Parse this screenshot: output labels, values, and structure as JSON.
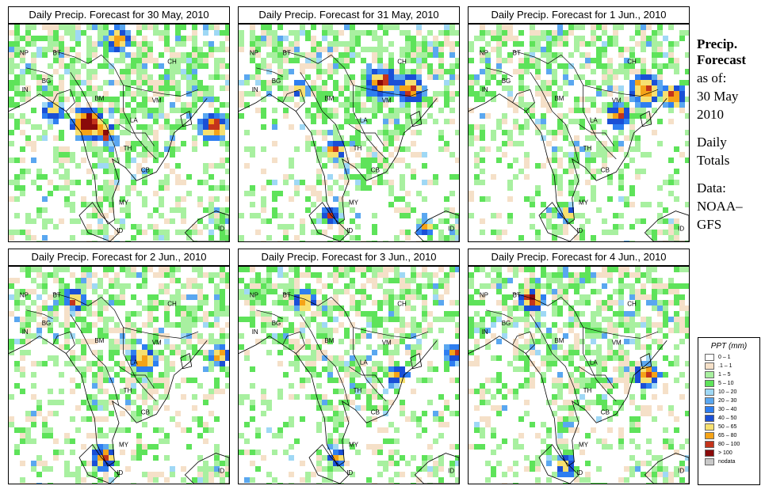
{
  "panels": [
    {
      "title": "Daily Precip. Forecast for 30 May, 2010",
      "seed": 11,
      "wet": 0.6,
      "hot": [
        [
          0.36,
          0.46,
          0.08,
          5
        ],
        [
          0.44,
          0.5,
          0.05,
          3
        ],
        [
          0.5,
          0.07,
          0.06,
          2
        ],
        [
          0.93,
          0.47,
          0.07,
          2
        ],
        [
          0.2,
          0.4,
          0.05,
          1
        ]
      ]
    },
    {
      "title": "Daily Precip. Forecast for 31 May, 2010",
      "seed": 23,
      "wet": 0.55,
      "hot": [
        [
          0.65,
          0.27,
          0.08,
          2
        ],
        [
          0.78,
          0.3,
          0.07,
          2
        ],
        [
          0.28,
          0.3,
          0.04,
          1
        ],
        [
          0.44,
          0.58,
          0.05,
          2
        ],
        [
          0.42,
          0.88,
          0.04,
          1
        ],
        [
          0.85,
          0.94,
          0.04,
          1
        ]
      ]
    },
    {
      "title": "Daily Precip. Forecast for  1 Jun., 2010",
      "seed": 37,
      "wet": 0.5,
      "hot": [
        [
          0.8,
          0.3,
          0.08,
          2
        ],
        [
          0.93,
          0.33,
          0.06,
          2
        ],
        [
          0.68,
          0.42,
          0.06,
          2
        ],
        [
          0.45,
          0.87,
          0.04,
          1
        ]
      ]
    },
    {
      "title": "Daily Precip. Forecast for  2 Jun., 2010",
      "seed": 41,
      "wet": 0.55,
      "hot": [
        [
          0.3,
          0.15,
          0.05,
          2
        ],
        [
          0.61,
          0.43,
          0.06,
          2
        ],
        [
          0.96,
          0.41,
          0.05,
          2
        ],
        [
          0.43,
          0.88,
          0.06,
          2
        ]
      ]
    },
    {
      "title": "Daily Precip. Forecast for  3 Jun., 2010",
      "seed": 53,
      "wet": 0.5,
      "hot": [
        [
          0.3,
          0.16,
          0.05,
          2
        ],
        [
          0.98,
          0.4,
          0.05,
          2
        ],
        [
          0.72,
          0.5,
          0.05,
          1
        ],
        [
          0.45,
          0.88,
          0.04,
          1
        ]
      ]
    },
    {
      "title": "Daily Precip. Forecast for  4 Jun., 2010",
      "seed": 67,
      "wet": 0.52,
      "hot": [
        [
          0.29,
          0.15,
          0.06,
          3
        ],
        [
          0.81,
          0.5,
          0.06,
          2
        ],
        [
          0.44,
          0.92,
          0.05,
          1
        ]
      ]
    }
  ],
  "map_labels": [
    "NP",
    "BT",
    "BG",
    "IN",
    "BM",
    "CH",
    "VM",
    "LA",
    "TH",
    "CB",
    "MY",
    "ID",
    "ID"
  ],
  "side": {
    "title1": "Precip.",
    "title2": "Forecast",
    "asof": "as of:",
    "date1": "30 May",
    "date2": "2010",
    "daily": "Daily",
    "totals": "Totals",
    "data": "Data:",
    "source1": "NOAA–",
    "source2": "GFS"
  },
  "legend": {
    "title": "PPT (mm)",
    "items": [
      {
        "label": "0 – 1",
        "color": "#ffffff"
      },
      {
        "label": ".1 – 1",
        "color": "#f5e0c8"
      },
      {
        "label": "1 – 5",
        "color": "#a8f0a0"
      },
      {
        "label": "5 – 10",
        "color": "#5ee35a"
      },
      {
        "label": "10 – 20",
        "color": "#9fd8f5"
      },
      {
        "label": "20 – 30",
        "color": "#5aa7f0"
      },
      {
        "label": "30 – 40",
        "color": "#2e7ef0"
      },
      {
        "label": "40 – 50",
        "color": "#1a4fd6"
      },
      {
        "label": "50 – 65",
        "color": "#f7e070"
      },
      {
        "label": "65 – 80",
        "color": "#f5a318"
      },
      {
        "label": "80 – 100",
        "color": "#c4341b"
      },
      {
        "label": "> 100",
        "color": "#8a0a0a"
      },
      {
        "label": "nodata",
        "color": "#c8c8c8"
      }
    ]
  }
}
